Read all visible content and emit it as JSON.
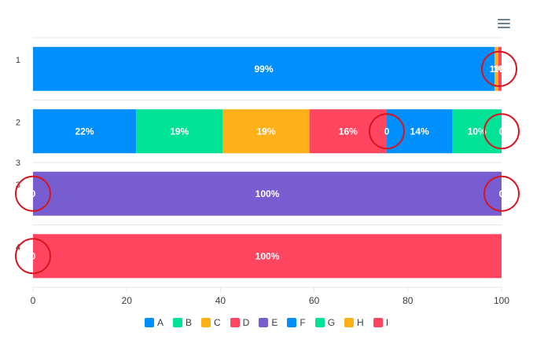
{
  "colors": {
    "series": [
      "#008FFB",
      "#00E396",
      "#FEB019",
      "#FF4560",
      "#775DD0",
      "#008FFB",
      "#00E396",
      "#FEB019",
      "#FF4560"
    ],
    "grid": "#e6e6e6",
    "axis_label": "#373d3f",
    "bar_label": "#ffffff",
    "highlight_circle": "#d9141f"
  },
  "icons": {
    "menu": "hamburger-menu-icon"
  },
  "chart_data": {
    "type": "bar",
    "orientation": "horizontal",
    "stacked": true,
    "stack_type": "100%",
    "categories": [
      "1",
      "2",
      "3",
      "4"
    ],
    "y_axis_extra_labels": [
      "3"
    ],
    "xlim": [
      0,
      100
    ],
    "x_ticks": [
      "0",
      "20",
      "40",
      "60",
      "80",
      "100"
    ],
    "grid": true,
    "legend_position": "bottom",
    "series": [
      {
        "name": "A",
        "values": [
          98.5,
          22,
          0,
          0
        ],
        "labels": [
          "99%",
          "22%",
          "0",
          "0"
        ]
      },
      {
        "name": "B",
        "values": [
          0,
          18.5,
          0,
          0
        ],
        "labels": [
          "",
          "19%",
          "",
          ""
        ]
      },
      {
        "name": "C",
        "values": [
          0.8,
          18.5,
          0,
          0
        ],
        "labels": [
          "1%",
          "19%",
          "",
          ""
        ]
      },
      {
        "name": "D",
        "values": [
          0.7,
          16.5,
          0,
          100
        ],
        "labels": [
          "1%",
          "16%",
          "",
          "100%"
        ]
      },
      {
        "name": "E",
        "values": [
          0,
          0,
          100,
          0
        ],
        "labels": [
          "",
          "0",
          "100%",
          ""
        ]
      },
      {
        "name": "F",
        "values": [
          0,
          14,
          0,
          0
        ],
        "labels": [
          "",
          "14%",
          "0",
          ""
        ]
      },
      {
        "name": "G",
        "values": [
          0,
          10.5,
          0,
          0
        ],
        "labels": [
          "",
          "10%",
          "",
          ""
        ]
      },
      {
        "name": "H",
        "values": [
          0,
          0,
          0,
          0
        ],
        "labels": [
          "",
          "0",
          "",
          ""
        ]
      },
      {
        "name": "I",
        "values": [
          0,
          0,
          0,
          0
        ],
        "labels": [
          "",
          "",
          "",
          ""
        ]
      }
    ],
    "annotations": [
      {
        "type": "circle",
        "category": "1",
        "at_value": 99.5
      },
      {
        "type": "circle",
        "category": "2",
        "at_value": 75.5
      },
      {
        "type": "circle",
        "category": "2",
        "at_value": 100
      },
      {
        "type": "circle",
        "category": "3",
        "at_value": 0
      },
      {
        "type": "circle",
        "category": "3",
        "at_value": 100
      },
      {
        "type": "circle",
        "category": "4",
        "at_value": 0
      }
    ]
  }
}
